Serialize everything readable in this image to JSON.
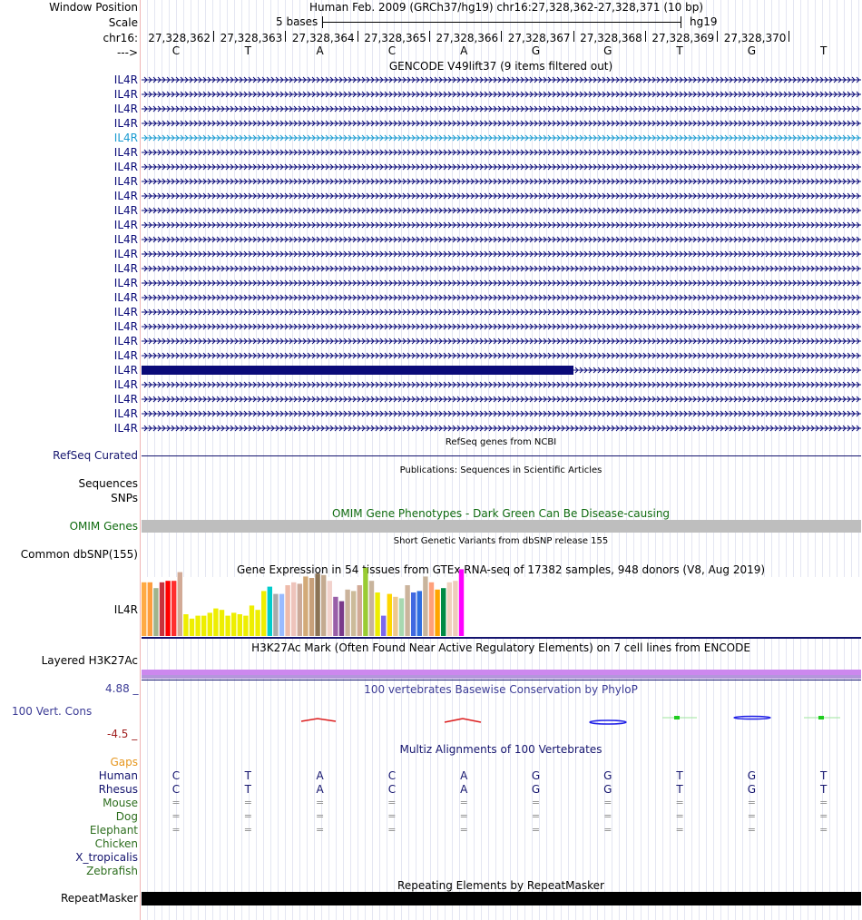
{
  "header": {
    "window_position_label": "Window Position",
    "window_position_text": "Human Feb. 2009 (GRCh37/hg19)   chr16:27,328,362-27,328,371 (10 bp)",
    "scale_label": "Scale",
    "scale_text": "5 bases",
    "assembly": "hg19",
    "chrom_label": "chr16:",
    "strand_label": "--->"
  },
  "coordinates": [
    "27,328,362",
    "27,328,363",
    "27,328,364",
    "27,328,365",
    "27,328,366",
    "27,328,367",
    "27,328,368",
    "27,328,369",
    "27,328,370"
  ],
  "bases": [
    "C",
    "T",
    "A",
    "C",
    "A",
    "G",
    "G",
    "T",
    "G",
    "T"
  ],
  "tracks": {
    "gencode": {
      "title": "GENCODE V49lift37 (9 items filtered out)",
      "gene_label": "IL4R",
      "rows": [
        {
          "label": "IL4R"
        },
        {
          "label": "IL4R"
        },
        {
          "label": "IL4R"
        },
        {
          "label": "IL4R"
        },
        {
          "label": "IL4R"
        },
        {
          "label": "IL4R"
        },
        {
          "label": "IL4R"
        },
        {
          "label": "IL4R"
        },
        {
          "label": "IL4R"
        },
        {
          "label": "IL4R"
        },
        {
          "label": "IL4R"
        },
        {
          "label": "IL4R"
        },
        {
          "label": "IL4R"
        },
        {
          "label": "IL4R"
        },
        {
          "label": "IL4R"
        },
        {
          "label": "IL4R"
        },
        {
          "label": "IL4R"
        },
        {
          "label": "IL4R"
        },
        {
          "label": "IL4R"
        },
        {
          "label": "IL4R"
        },
        {
          "label": "IL4R"
        },
        {
          "label": "IL4R"
        },
        {
          "label": "IL4R"
        },
        {
          "label": "IL4R"
        },
        {
          "label": "IL4R"
        }
      ],
      "highlight_color": "#1a9bd1",
      "gene_color": "#0a0a78"
    },
    "refseq": {
      "label": "RefSeq Curated",
      "title": "RefSeq genes from NCBI"
    },
    "publications": {
      "title": "Publications: Sequences in Scientific Articles",
      "label1": "Sequences",
      "label2": "SNPs"
    },
    "omim": {
      "label": "OMIM Genes",
      "title": "OMIM Gene Phenotypes - Dark Green Can Be Disease-causing",
      "color": "#0f6b0f"
    },
    "dbsnp": {
      "label": "Common dbSNP(155)",
      "title": "Short Genetic Variants from dbSNP release 155"
    },
    "gtex": {
      "title": "Gene Expression in 54 tissues from GTEx RNA-seq of 17382 samples, 948 donors (V8, Aug 2019)",
      "gene_label": "IL4R",
      "colors": [
        "#ffaa44",
        "#ff9d3d",
        "#a0b48c",
        "#c8323c",
        "#ff0000",
        "#ff2e2e",
        "#d2aa96",
        "#eeee00",
        "#eeee00",
        "#eeee00",
        "#eeee00",
        "#eeee00",
        "#eeee00",
        "#eeee00",
        "#eeee00",
        "#eeee00",
        "#eeee00",
        "#eeee00",
        "#eeee00",
        "#eeee00",
        "#eeee00",
        "#00cccc",
        "#aaaaaa",
        "#99bbff",
        "#eebbaa",
        "#eec4bb",
        "#ccaa99",
        "#d2aa78",
        "#c8a07a",
        "#8b7355",
        "#c4aa90",
        "#f2d2cc",
        "#995fa8",
        "#7a3a8a",
        "#cbb49c",
        "#ccbb99",
        "#d2aa96",
        "#99cc33",
        "#c8b49c",
        "#eeee00",
        "#7b68ee",
        "#ffd700",
        "#eec88c",
        "#a8d8b0",
        "#cbb49c",
        "#4169e1",
        "#2e6ee0",
        "#c8b49c",
        "#ffa07a",
        "#ffa500",
        "#008b45",
        "#f0d2be",
        "#eeccbb",
        "#ff00ff"
      ],
      "values": [
        0.37,
        0.37,
        0.33,
        0.37,
        0.38,
        0.38,
        0.44,
        0.15,
        0.12,
        0.14,
        0.14,
        0.16,
        0.19,
        0.18,
        0.14,
        0.16,
        0.15,
        0.14,
        0.21,
        0.18,
        0.31,
        0.34,
        0.29,
        0.29,
        0.35,
        0.37,
        0.36,
        0.41,
        0.4,
        0.43,
        0.42,
        0.38,
        0.27,
        0.24,
        0.32,
        0.31,
        0.35,
        0.47,
        0.38,
        0.3,
        0.14,
        0.29,
        0.27,
        0.26,
        0.35,
        0.3,
        0.31,
        0.41,
        0.37,
        0.32,
        0.33,
        0.37,
        0.38,
        0.46
      ]
    },
    "h3k27ac": {
      "label": "Layered H3K27Ac",
      "title": "H3K27Ac Mark (Often Found Near Active Regulatory Elements) on 7 cell lines from ENCODE"
    },
    "phylop": {
      "label": "100 Vert. Cons",
      "title": "100 vertebrates Basewise Conservation by PhyloP",
      "max_label": "4.88 _",
      "min_label": "-4.5 _",
      "max": 4.88,
      "min": -4.5
    },
    "multiz": {
      "title": "Multiz Alignments of 100 Vertebrates",
      "gaps_label": "Gaps",
      "species": [
        {
          "name": "Human",
          "color": "#14146e",
          "seq": [
            "C",
            "T",
            "A",
            "C",
            "A",
            "G",
            "G",
            "T",
            "G",
            "T"
          ]
        },
        {
          "name": "Rhesus",
          "color": "#14146e",
          "seq": [
            "C",
            "T",
            "A",
            "C",
            "A",
            "G",
            "G",
            "T",
            "G",
            "T"
          ]
        },
        {
          "name": "Mouse",
          "color": "#2d6e1e",
          "seq": [
            "=",
            "=",
            "=",
            "=",
            "=",
            "=",
            "=",
            "=",
            "=",
            "="
          ]
        },
        {
          "name": "Dog",
          "color": "#2d6e1e",
          "seq": [
            "=",
            "=",
            "=",
            "=",
            "=",
            "=",
            "=",
            "=",
            "=",
            "="
          ]
        },
        {
          "name": "Elephant",
          "color": "#2d6e1e",
          "seq": [
            "=",
            "=",
            "=",
            "=",
            "=",
            "=",
            "=",
            "=",
            "=",
            "="
          ]
        },
        {
          "name": "Chicken",
          "color": "#2d6e1e",
          "seq": []
        },
        {
          "name": "X_tropicalis",
          "color": "#14146e",
          "seq": []
        },
        {
          "name": "Zebrafish",
          "color": "#2d6e1e",
          "seq": []
        }
      ]
    },
    "repeatmasker": {
      "label": "RepeatMasker",
      "title": "Repeating Elements by RepeatMasker"
    }
  }
}
